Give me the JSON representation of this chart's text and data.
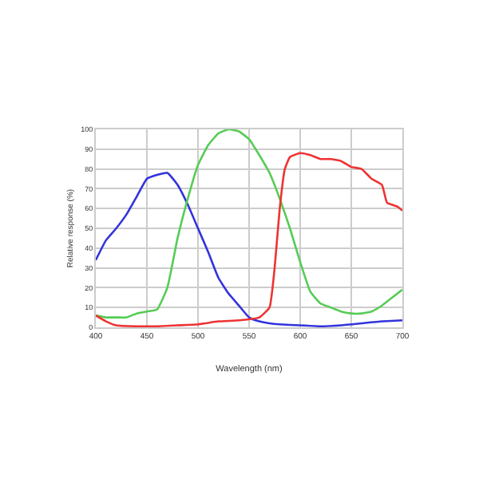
{
  "chart_data": {
    "type": "line",
    "xlabel": "Wavelength (nm)",
    "ylabel": "Relative response (%)",
    "xlim": [
      400,
      700
    ],
    "xticks": [
      400,
      450,
      500,
      550,
      600,
      650,
      700
    ],
    "ylim": [
      0,
      100
    ],
    "yticks": [
      0,
      10,
      20,
      30,
      40,
      50,
      60,
      70,
      80,
      90,
      100
    ],
    "grid": true,
    "legend": false,
    "marker": "none",
    "line_style": "solid",
    "series": [
      {
        "color": "#3333dd",
        "x": [
          400,
          410,
          420,
          430,
          440,
          450,
          460,
          470,
          480,
          490,
          500,
          510,
          520,
          530,
          540,
          550,
          560,
          570,
          580,
          600,
          620,
          640,
          660,
          680,
          700
        ],
        "values": [
          34,
          44,
          50,
          57,
          66,
          75,
          77,
          78,
          72,
          62,
          50,
          38,
          25,
          17,
          11,
          5,
          3,
          2,
          1.5,
          1,
          0.5,
          1,
          2,
          3,
          3.5
        ]
      },
      {
        "color": "#55cc55",
        "x": [
          400,
          410,
          420,
          430,
          440,
          450,
          460,
          470,
          480,
          490,
          500,
          510,
          520,
          530,
          540,
          550,
          560,
          570,
          580,
          590,
          600,
          610,
          620,
          630,
          640,
          650,
          660,
          670,
          680,
          690,
          700
        ],
        "values": [
          6,
          5,
          5,
          5,
          7,
          8,
          9,
          20,
          45,
          65,
          82,
          92,
          98,
          100,
          99,
          95,
          87,
          78,
          65,
          50,
          33,
          18,
          12,
          10,
          8,
          7,
          7,
          8,
          11,
          15,
          19
        ]
      },
      {
        "color": "#ee3333",
        "x": [
          400,
          410,
          420,
          440,
          460,
          480,
          500,
          520,
          540,
          560,
          570,
          575,
          580,
          585,
          590,
          600,
          610,
          620,
          630,
          640,
          650,
          660,
          670,
          680,
          685,
          695,
          700
        ],
        "values": [
          6,
          3,
          1,
          0.5,
          0.5,
          1,
          1.5,
          3,
          3.5,
          5,
          10,
          30,
          60,
          80,
          86,
          88,
          87,
          85,
          85,
          84,
          81,
          80,
          75,
          72,
          63,
          61,
          59
        ]
      }
    ]
  }
}
